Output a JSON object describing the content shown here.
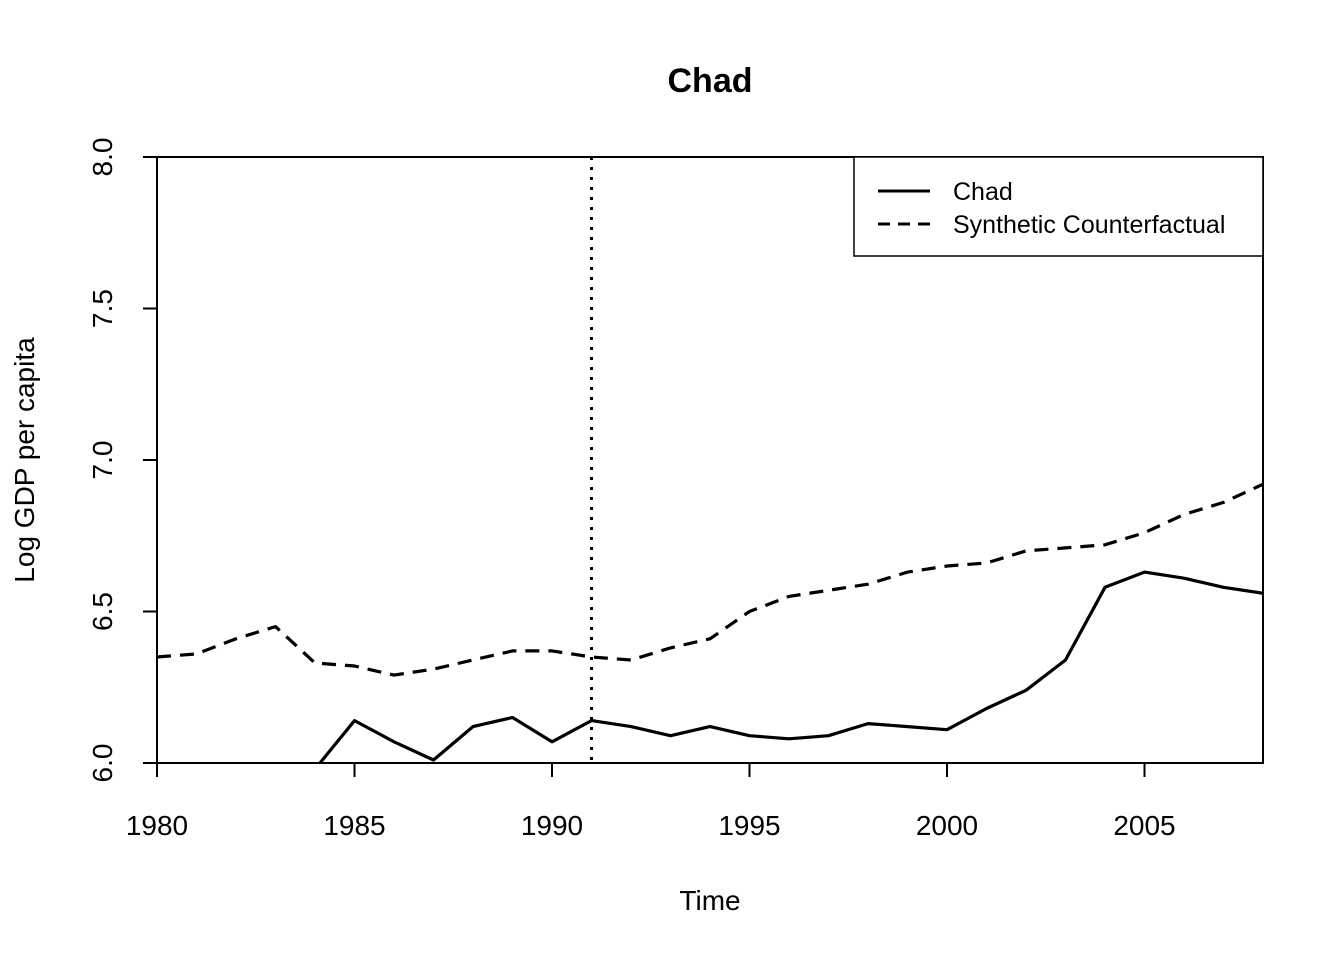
{
  "chart_data": {
    "type": "line",
    "title": "Chad",
    "xlabel": "Time",
    "ylabel": "Log GDP per capita",
    "xlim": [
      1980,
      2008
    ],
    "ylim": [
      6.0,
      8.0
    ],
    "xticks": [
      "1980",
      "1985",
      "1990",
      "1995",
      "2000",
      "2005"
    ],
    "yticks": [
      "6.0",
      "6.5",
      "7.0",
      "7.5",
      "8.0"
    ],
    "vline_x": 1991,
    "grid": false,
    "legend_position": "top-right",
    "series": [
      {
        "name": "Chad",
        "style": "solid",
        "x": [
          1984,
          1985,
          1986,
          1987,
          1988,
          1989,
          1990,
          1991,
          1992,
          1993,
          1994,
          1995,
          1996,
          1997,
          1998,
          1999,
          2000,
          2001,
          2002,
          2003,
          2004,
          2005,
          2006,
          2007,
          2008
        ],
        "y": [
          5.98,
          6.14,
          6.07,
          6.01,
          6.12,
          6.15,
          6.07,
          6.14,
          6.12,
          6.09,
          6.12,
          6.09,
          6.08,
          6.09,
          6.13,
          6.12,
          6.11,
          6.18,
          6.24,
          6.34,
          6.58,
          6.63,
          6.61,
          6.58,
          6.56
        ]
      },
      {
        "name": "Synthetic Counterfactual",
        "style": "dashed",
        "x": [
          1980,
          1981,
          1982,
          1983,
          1984,
          1985,
          1986,
          1987,
          1988,
          1989,
          1990,
          1991,
          1992,
          1993,
          1994,
          1995,
          1996,
          1997,
          1998,
          1999,
          2000,
          2001,
          2002,
          2003,
          2004,
          2005,
          2006,
          2007,
          2008
        ],
        "y": [
          6.35,
          6.36,
          6.41,
          6.45,
          6.33,
          6.32,
          6.29,
          6.31,
          6.34,
          6.37,
          6.37,
          6.35,
          6.34,
          6.38,
          6.41,
          6.5,
          6.55,
          6.57,
          6.59,
          6.63,
          6.65,
          6.66,
          6.7,
          6.71,
          6.72,
          6.76,
          6.82,
          6.86,
          6.92
        ]
      }
    ]
  }
}
